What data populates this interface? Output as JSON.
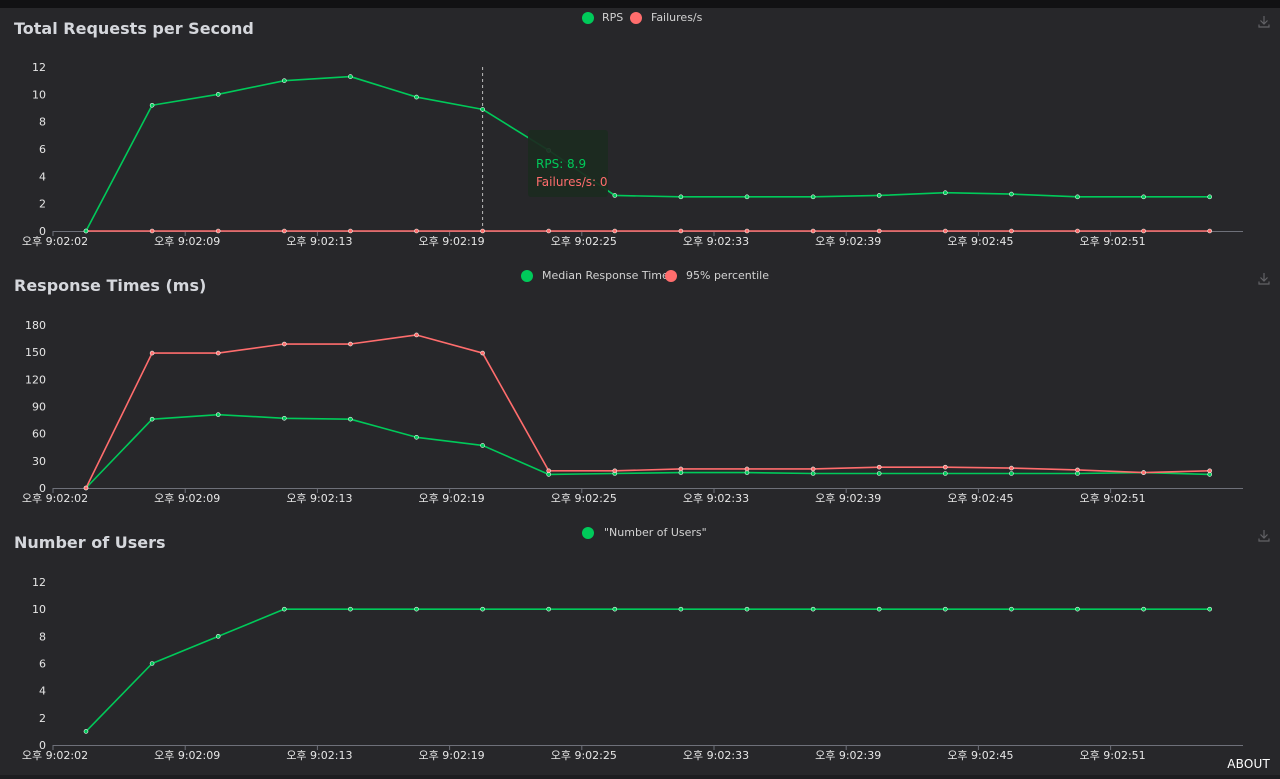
{
  "x_ticks": [
    "오후 9:02:02",
    "오후 9:02:09",
    "오후 9:02:13",
    "오후 9:02:19",
    "오후 9:02:25",
    "오후 9:02:33",
    "오후 9:02:39",
    "오후 9:02:45",
    "오후 9:02:51"
  ],
  "about_label": "ABOUT",
  "colors": {
    "green": "#00ca5a",
    "red": "#ff6d6d",
    "background": "#27272a",
    "title": "#d5d7dc"
  },
  "chart_data": [
    {
      "type": "line",
      "title": "Total Requests per Second",
      "y_ticks": [
        "0",
        "2",
        "4",
        "6",
        "8",
        "10",
        "12"
      ],
      "ylim": [
        0,
        12
      ],
      "grid": false,
      "legend_position": "top-center",
      "series": [
        {
          "name": "RPS",
          "values": [
            0,
            9.2,
            10,
            11,
            11.3,
            9.8,
            8.9,
            5.9,
            2.6,
            2.5,
            2.5,
            2.5,
            2.6,
            2.8,
            2.7,
            2.5,
            2.5,
            2.5
          ],
          "color": "#00ca5a"
        },
        {
          "name": "Failures/s",
          "values": [
            0,
            0,
            0,
            0,
            0,
            0,
            0,
            0,
            0,
            0,
            0,
            0,
            0,
            0,
            0,
            0,
            0,
            0
          ],
          "color": "#ff6d6d"
        }
      ],
      "tooltip": {
        "index": 6,
        "rps_text": "RPS: 8.9",
        "failures_text": "Failures/s: 0"
      }
    },
    {
      "type": "line",
      "title": "Response Times (ms)",
      "y_ticks": [
        "0",
        "30",
        "60",
        "90",
        "120",
        "150",
        "180"
      ],
      "ylim": [
        0,
        180
      ],
      "grid": false,
      "legend_position": "top-center",
      "series": [
        {
          "name": "Median Response Time",
          "values": [
            0,
            76,
            81,
            77,
            76,
            56,
            47,
            15,
            16,
            17,
            17,
            16,
            16,
            16,
            16,
            16,
            17,
            15
          ],
          "color": "#00ca5a"
        },
        {
          "name": "95% percentile",
          "values": [
            0,
            149,
            149,
            159,
            159,
            169,
            149,
            19,
            19,
            21,
            21,
            21,
            23,
            23,
            22,
            20,
            17,
            19
          ],
          "color": "#ff6d6d"
        }
      ]
    },
    {
      "type": "line",
      "title": "Number of Users",
      "y_ticks": [
        "0",
        "2",
        "4",
        "6",
        "8",
        "10",
        "12"
      ],
      "ylim": [
        0,
        12
      ],
      "grid": false,
      "legend_position": "top-center",
      "series": [
        {
          "name": "\"Number of Users\"",
          "values": [
            1,
            6,
            8,
            10,
            10,
            10,
            10,
            10,
            10,
            10,
            10,
            10,
            10,
            10,
            10,
            10,
            10,
            10
          ],
          "color": "#00ca5a"
        }
      ]
    }
  ]
}
